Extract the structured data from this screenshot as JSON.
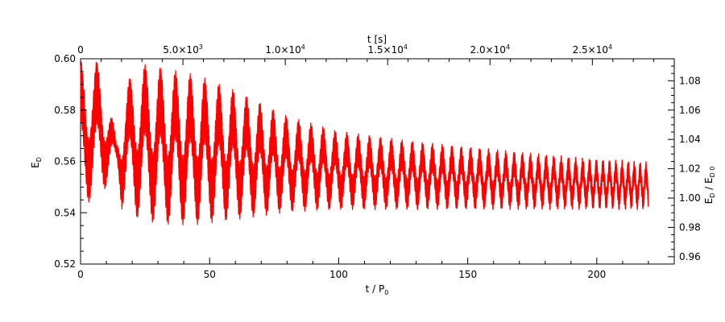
{
  "chart_data": {
    "type": "line",
    "xlabel_bottom": {
      "text": "t / P",
      "sub": "0"
    },
    "xlabel_top": "t [s]",
    "ylabel_left": {
      "text": "E",
      "sub": "D"
    },
    "ylabel_right": {
      "text": "E",
      "sub": "D",
      "mid": " / E",
      "sub2": "D 0"
    },
    "xlim": [
      0,
      230
    ],
    "ylim": [
      0.52,
      0.6
    ],
    "ylim_right": [
      0.955,
      1.095
    ],
    "xlim_top": [
      0,
      29000
    ],
    "x_ticks_bottom": [
      {
        "value": 0,
        "label": "0"
      },
      {
        "value": 50,
        "label": "50"
      },
      {
        "value": 100,
        "label": "100"
      },
      {
        "value": 150,
        "label": "150"
      },
      {
        "value": 200,
        "label": "200"
      }
    ],
    "y_ticks_left": [
      {
        "value": 0.52,
        "label": "0.52"
      },
      {
        "value": 0.54,
        "label": "0.54"
      },
      {
        "value": 0.56,
        "label": "0.56"
      },
      {
        "value": 0.58,
        "label": "0.58"
      },
      {
        "value": 0.6,
        "label": "0.60"
      }
    ],
    "y_ticks_right": [
      {
        "value": 0.96,
        "label": "0.96"
      },
      {
        "value": 0.98,
        "label": "0.98"
      },
      {
        "value": 1.0,
        "label": "1.00"
      },
      {
        "value": 1.02,
        "label": "1.02"
      },
      {
        "value": 1.04,
        "label": "1.04"
      },
      {
        "value": 1.06,
        "label": "1.06"
      },
      {
        "value": 1.08,
        "label": "1.08"
      }
    ],
    "x_ticks_top": [
      {
        "value": 0,
        "label": "0"
      },
      {
        "value": 5000,
        "label": "5.0×10",
        "exp": "3"
      },
      {
        "value": 10000,
        "label": "1.0×10",
        "exp": "4"
      },
      {
        "value": 15000,
        "label": "1.5×10",
        "exp": "4"
      },
      {
        "value": 20000,
        "label": "2.0×10",
        "exp": "4"
      },
      {
        "value": 25000,
        "label": "2.5×10",
        "exp": "4"
      }
    ],
    "series": [
      {
        "color": "#ff0000",
        "t_end": 220,
        "envelope": [
          {
            "t": 0,
            "upper": 0.6,
            "lower": 0.545
          },
          {
            "t": 6,
            "upper": 0.6,
            "lower": 0.543
          },
          {
            "t": 10,
            "upper": 0.59,
            "lower": 0.55
          },
          {
            "t": 14,
            "upper": 0.568,
            "lower": 0.558
          },
          {
            "t": 16,
            "upper": 0.585,
            "lower": 0.541
          },
          {
            "t": 21,
            "upper": 0.598,
            "lower": 0.538
          },
          {
            "t": 27,
            "upper": 0.598,
            "lower": 0.536
          },
          {
            "t": 35,
            "upper": 0.596,
            "lower": 0.535
          },
          {
            "t": 45,
            "upper": 0.594,
            "lower": 0.535
          },
          {
            "t": 60,
            "upper": 0.588,
            "lower": 0.537
          },
          {
            "t": 80,
            "upper": 0.578,
            "lower": 0.54
          },
          {
            "t": 100,
            "upper": 0.572,
            "lower": 0.541
          },
          {
            "t": 130,
            "upper": 0.568,
            "lower": 0.541
          },
          {
            "t": 160,
            "upper": 0.565,
            "lower": 0.541
          },
          {
            "t": 190,
            "upper": 0.562,
            "lower": 0.541
          },
          {
            "t": 220,
            "upper": 0.56,
            "lower": 0.541
          }
        ],
        "period_start": 6.5,
        "period_end": 2.2
      }
    ]
  }
}
